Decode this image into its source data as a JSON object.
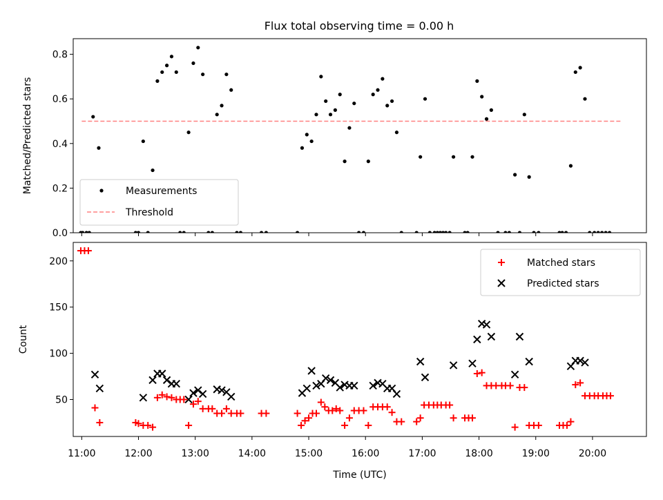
{
  "title": "Flux total observing time = 0.00 h",
  "colors": {
    "measurement": "#000000",
    "threshold": "#ff8080",
    "matched": "#ff0000",
    "predicted": "#000000"
  },
  "chart_data": [
    {
      "type": "scatter",
      "ylabel": "Matched/Predicted stars",
      "ylim": [
        0.0,
        0.87
      ],
      "xlim": [
        "10:51",
        "20:57"
      ],
      "yticks": [
        "0.0",
        "0.2",
        "0.4",
        "0.6",
        "0.8"
      ],
      "legend": {
        "position": "bottom-left",
        "entries": [
          "Measurements",
          "Threshold"
        ]
      },
      "threshold": {
        "name": "Threshold",
        "value": 0.5,
        "x": [
          "11:00",
          "20:30"
        ]
      },
      "series": [
        {
          "name": "Measurements",
          "points": [
            [
              "10:59",
              0
            ],
            [
              "11:01",
              0
            ],
            [
              "11:05",
              0
            ],
            [
              "11:08",
              0
            ],
            [
              "11:12",
              0.52
            ],
            [
              "11:18",
              0.38
            ],
            [
              "11:57",
              0
            ],
            [
              "12:00",
              0
            ],
            [
              "12:05",
              0.41
            ],
            [
              "12:10",
              0
            ],
            [
              "12:15",
              0.28
            ],
            [
              "12:20",
              0.68
            ],
            [
              "12:25",
              0.72
            ],
            [
              "12:30",
              0.75
            ],
            [
              "12:35",
              0.79
            ],
            [
              "12:40",
              0.72
            ],
            [
              "12:44",
              0
            ],
            [
              "12:48",
              0
            ],
            [
              "12:53",
              0.45
            ],
            [
              "12:58",
              0.76
            ],
            [
              "13:03",
              0.83
            ],
            [
              "13:08",
              0.71
            ],
            [
              "13:14",
              0
            ],
            [
              "13:18",
              0
            ],
            [
              "13:23",
              0.53
            ],
            [
              "13:28",
              0.57
            ],
            [
              "13:33",
              0.71
            ],
            [
              "13:38",
              0.64
            ],
            [
              "13:44",
              0
            ],
            [
              "13:48",
              0
            ],
            [
              "14:10",
              0
            ],
            [
              "14:15",
              0
            ],
            [
              "14:48",
              0
            ],
            [
              "14:53",
              0.38
            ],
            [
              "14:58",
              0.44
            ],
            [
              "15:03",
              0.41
            ],
            [
              "15:08",
              0.53
            ],
            [
              "15:13",
              0.7
            ],
            [
              "15:18",
              0.59
            ],
            [
              "15:23",
              0.53
            ],
            [
              "15:28",
              0.55
            ],
            [
              "15:33",
              0.62
            ],
            [
              "15:38",
              0.32
            ],
            [
              "15:43",
              0.47
            ],
            [
              "15:48",
              0.58
            ],
            [
              "15:53",
              0
            ],
            [
              "15:58",
              0
            ],
            [
              "16:03",
              0.32
            ],
            [
              "16:08",
              0.62
            ],
            [
              "16:13",
              0.64
            ],
            [
              "16:18",
              0.69
            ],
            [
              "16:23",
              0.57
            ],
            [
              "16:28",
              0.59
            ],
            [
              "16:33",
              0.45
            ],
            [
              "16:38",
              0
            ],
            [
              "16:54",
              0
            ],
            [
              "16:58",
              0.34
            ],
            [
              "17:03",
              0.6
            ],
            [
              "17:08",
              0
            ],
            [
              "17:13",
              0
            ],
            [
              "17:16",
              0
            ],
            [
              "17:19",
              0
            ],
            [
              "17:22",
              0
            ],
            [
              "17:25",
              0
            ],
            [
              "17:29",
              0
            ],
            [
              "17:33",
              0.34
            ],
            [
              "17:45",
              0
            ],
            [
              "17:48",
              0
            ],
            [
              "17:53",
              0.34
            ],
            [
              "17:58",
              0.68
            ],
            [
              "18:03",
              0.61
            ],
            [
              "18:08",
              0.51
            ],
            [
              "18:13",
              0.55
            ],
            [
              "18:20",
              0
            ],
            [
              "18:28",
              0
            ],
            [
              "18:32",
              0
            ],
            [
              "18:38",
              0.26
            ],
            [
              "18:43",
              0
            ],
            [
              "18:48",
              0.53
            ],
            [
              "18:53",
              0.25
            ],
            [
              "18:58",
              0
            ],
            [
              "19:03",
              0
            ],
            [
              "19:25",
              0
            ],
            [
              "19:28",
              0
            ],
            [
              "19:32",
              0
            ],
            [
              "19:37",
              0.3
            ],
            [
              "19:42",
              0.72
            ],
            [
              "19:47",
              0.74
            ],
            [
              "19:52",
              0.6
            ],
            [
              "19:57",
              0
            ],
            [
              "20:02",
              0
            ],
            [
              "20:06",
              0
            ],
            [
              "20:10",
              0
            ],
            [
              "20:14",
              0
            ],
            [
              "20:18",
              0
            ]
          ]
        }
      ]
    },
    {
      "type": "scatter",
      "xlabel": "Time (UTC)",
      "ylabel": "Count",
      "ylim": [
        10,
        220
      ],
      "xlim": [
        "10:51",
        "20:57"
      ],
      "yticks": [
        "50",
        "100",
        "150",
        "200"
      ],
      "xticks": [
        "11:00",
        "12:00",
        "13:00",
        "14:00",
        "15:00",
        "16:00",
        "17:00",
        "18:00",
        "19:00",
        "20:00"
      ],
      "legend": {
        "position": "top-right",
        "entries": [
          "Matched stars",
          "Predicted stars"
        ]
      },
      "series": [
        {
          "name": "Matched stars",
          "points": [
            [
              "10:59",
              211
            ],
            [
              "11:03",
              211
            ],
            [
              "11:07",
              211
            ],
            [
              "11:14",
              41
            ],
            [
              "11:19",
              25
            ],
            [
              "11:57",
              25
            ],
            [
              "12:00",
              24
            ],
            [
              "12:05",
              22
            ],
            [
              "12:10",
              22
            ],
            [
              "12:15",
              20
            ],
            [
              "12:20",
              52
            ],
            [
              "12:25",
              55
            ],
            [
              "12:30",
              53
            ],
            [
              "12:35",
              52
            ],
            [
              "12:40",
              50
            ],
            [
              "12:44",
              50
            ],
            [
              "12:48",
              50
            ],
            [
              "12:53",
              22
            ],
            [
              "12:58",
              45
            ],
            [
              "13:03",
              48
            ],
            [
              "13:08",
              40
            ],
            [
              "13:14",
              40
            ],
            [
              "13:18",
              40
            ],
            [
              "13:23",
              35
            ],
            [
              "13:28",
              35
            ],
            [
              "13:33",
              40
            ],
            [
              "13:38",
              35
            ],
            [
              "13:44",
              35
            ],
            [
              "13:48",
              35
            ],
            [
              "14:10",
              35
            ],
            [
              "14:15",
              35
            ],
            [
              "14:48",
              35
            ],
            [
              "14:52",
              22
            ],
            [
              "14:56",
              27
            ],
            [
              "15:00",
              30
            ],
            [
              "15:04",
              35
            ],
            [
              "15:08",
              35
            ],
            [
              "15:13",
              47
            ],
            [
              "15:17",
              42
            ],
            [
              "15:21",
              38
            ],
            [
              "15:25",
              38
            ],
            [
              "15:29",
              40
            ],
            [
              "15:33",
              38
            ],
            [
              "15:38",
              22
            ],
            [
              "15:43",
              30
            ],
            [
              "15:48",
              38
            ],
            [
              "15:53",
              38
            ],
            [
              "15:58",
              38
            ],
            [
              "16:03",
              22
            ],
            [
              "16:08",
              42
            ],
            [
              "16:13",
              42
            ],
            [
              "16:18",
              42
            ],
            [
              "16:23",
              42
            ],
            [
              "16:28",
              36
            ],
            [
              "16:33",
              26
            ],
            [
              "16:38",
              26
            ],
            [
              "16:54",
              26
            ],
            [
              "16:58",
              30
            ],
            [
              "17:02",
              44
            ],
            [
              "17:07",
              44
            ],
            [
              "17:12",
              44
            ],
            [
              "17:16",
              44
            ],
            [
              "17:20",
              44
            ],
            [
              "17:25",
              44
            ],
            [
              "17:29",
              44
            ],
            [
              "17:33",
              30
            ],
            [
              "17:45",
              30
            ],
            [
              "17:49",
              30
            ],
            [
              "17:53",
              30
            ],
            [
              "17:58",
              78
            ],
            [
              "18:03",
              79
            ],
            [
              "18:08",
              65
            ],
            [
              "18:13",
              65
            ],
            [
              "18:18",
              65
            ],
            [
              "18:24",
              65
            ],
            [
              "18:28",
              65
            ],
            [
              "18:33",
              65
            ],
            [
              "18:38",
              20
            ],
            [
              "18:43",
              63
            ],
            [
              "18:48",
              63
            ],
            [
              "18:53",
              22
            ],
            [
              "18:58",
              22
            ],
            [
              "19:03",
              22
            ],
            [
              "19:25",
              22
            ],
            [
              "19:29",
              22
            ],
            [
              "19:33",
              22
            ],
            [
              "19:37",
              26
            ],
            [
              "19:42",
              66
            ],
            [
              "19:47",
              68
            ],
            [
              "19:52",
              54
            ],
            [
              "19:57",
              54
            ],
            [
              "20:02",
              54
            ],
            [
              "20:06",
              54
            ],
            [
              "20:11",
              54
            ],
            [
              "20:15",
              54
            ],
            [
              "20:19",
              54
            ]
          ]
        },
        {
          "name": "Predicted stars",
          "points": [
            [
              "11:14",
              77
            ],
            [
              "11:19",
              62
            ],
            [
              "12:05",
              52
            ],
            [
              "12:15",
              71
            ],
            [
              "12:20",
              78
            ],
            [
              "12:25",
              78
            ],
            [
              "12:30",
              71
            ],
            [
              "12:35",
              67
            ],
            [
              "12:40",
              67
            ],
            [
              "12:53",
              50
            ],
            [
              "12:58",
              57
            ],
            [
              "13:03",
              60
            ],
            [
              "13:08",
              56
            ],
            [
              "13:23",
              61
            ],
            [
              "13:28",
              60
            ],
            [
              "13:33",
              58
            ],
            [
              "13:38",
              53
            ],
            [
              "14:53",
              57
            ],
            [
              "14:58",
              62
            ],
            [
              "15:03",
              81
            ],
            [
              "15:08",
              65
            ],
            [
              "15:13",
              67
            ],
            [
              "15:18",
              73
            ],
            [
              "15:23",
              71
            ],
            [
              "15:28",
              68
            ],
            [
              "15:33",
              63
            ],
            [
              "15:38",
              66
            ],
            [
              "15:43",
              65
            ],
            [
              "15:48",
              65
            ],
            [
              "16:08",
              65
            ],
            [
              "16:13",
              68
            ],
            [
              "16:18",
              67
            ],
            [
              "16:23",
              62
            ],
            [
              "16:28",
              62
            ],
            [
              "16:33",
              56
            ],
            [
              "16:58",
              91
            ],
            [
              "17:03",
              74
            ],
            [
              "17:33",
              87
            ],
            [
              "17:53",
              89
            ],
            [
              "17:58",
              115
            ],
            [
              "18:03",
              132
            ],
            [
              "18:08",
              131
            ],
            [
              "18:13",
              118
            ],
            [
              "18:38",
              77
            ],
            [
              "18:43",
              118
            ],
            [
              "18:53",
              91
            ],
            [
              "19:37",
              86
            ],
            [
              "19:42",
              92
            ],
            [
              "19:47",
              92
            ],
            [
              "19:52",
              90
            ]
          ]
        }
      ]
    }
  ]
}
